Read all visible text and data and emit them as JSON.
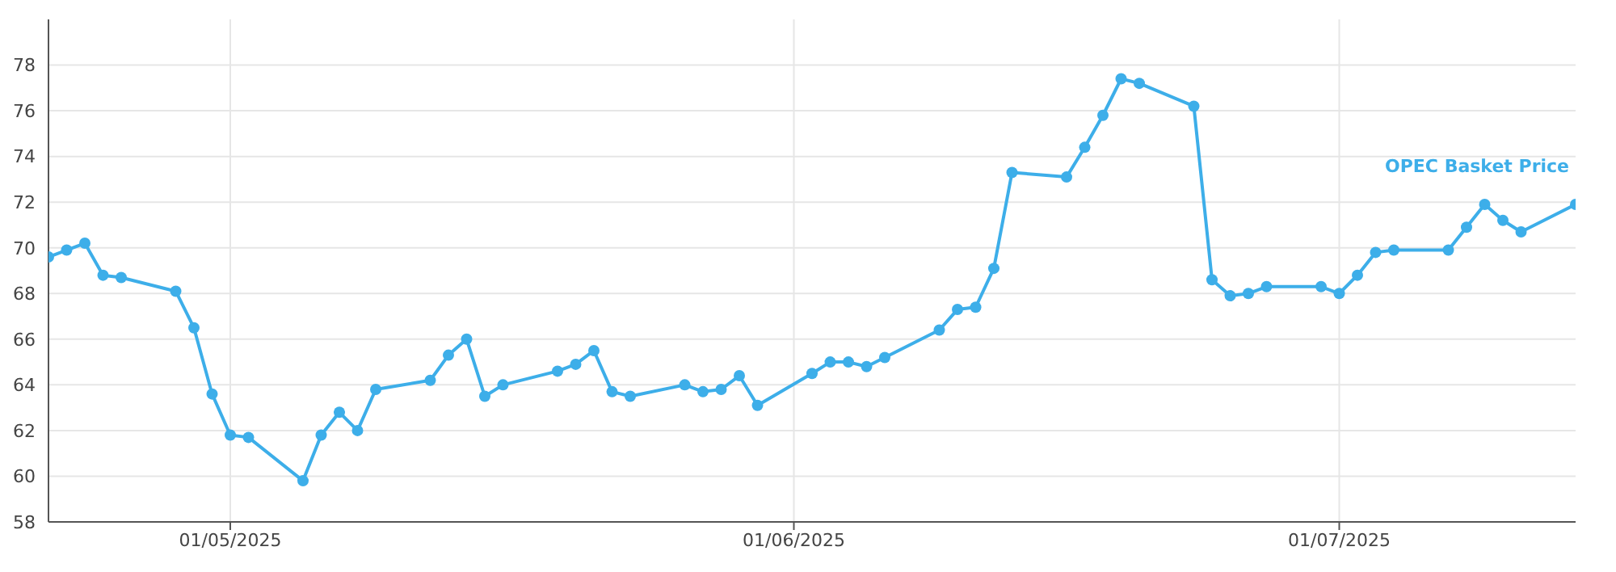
{
  "chart_data": {
    "type": "line",
    "x": [
      "2025-04-21",
      "2025-04-22",
      "2025-04-23",
      "2025-04-24",
      "2025-04-25",
      "2025-04-28",
      "2025-04-29",
      "2025-04-30",
      "2025-05-01",
      "2025-05-02",
      "2025-05-05",
      "2025-05-06",
      "2025-05-07",
      "2025-05-08",
      "2025-05-09",
      "2025-05-12",
      "2025-05-13",
      "2025-05-14",
      "2025-05-15",
      "2025-05-16",
      "2025-05-19",
      "2025-05-20",
      "2025-05-21",
      "2025-05-22",
      "2025-05-23",
      "2025-05-26",
      "2025-05-27",
      "2025-05-28",
      "2025-05-29",
      "2025-05-30",
      "2025-06-02",
      "2025-06-03",
      "2025-06-04",
      "2025-06-05",
      "2025-06-06",
      "2025-06-09",
      "2025-06-10",
      "2025-06-11",
      "2025-06-12",
      "2025-06-13",
      "2025-06-16",
      "2025-06-17",
      "2025-06-18",
      "2025-06-19",
      "2025-06-20",
      "2025-06-23",
      "2025-06-24",
      "2025-06-25",
      "2025-06-26",
      "2025-06-27",
      "2025-06-30",
      "2025-07-01",
      "2025-07-02",
      "2025-07-03",
      "2025-07-04",
      "2025-07-07",
      "2025-07-08",
      "2025-07-09",
      "2025-07-10",
      "2025-07-11",
      "2025-07-14"
    ],
    "series": [
      {
        "name": "OPEC Basket Price",
        "color": "#3daee9",
        "values": [
          69.6,
          69.9,
          70.2,
          68.8,
          68.7,
          68.1,
          66.5,
          63.6,
          61.8,
          61.7,
          59.8,
          61.8,
          62.8,
          62.0,
          63.8,
          64.2,
          65.3,
          66.0,
          63.5,
          64.0,
          64.6,
          64.9,
          65.5,
          63.7,
          63.5,
          64.0,
          63.7,
          63.8,
          64.4,
          63.1,
          64.5,
          65.0,
          65.0,
          64.8,
          65.2,
          66.4,
          67.3,
          67.4,
          69.1,
          73.3,
          73.1,
          74.4,
          75.8,
          77.4,
          77.2,
          76.2,
          68.6,
          67.9,
          68.0,
          68.3,
          68.3,
          68.0,
          68.8,
          69.8,
          69.9,
          69.9,
          70.9,
          71.9,
          71.2,
          70.7,
          71.9
        ]
      }
    ],
    "xlim": [
      "2025-04-21",
      "2025-07-14"
    ],
    "xticks": [
      {
        "value": "2025-05-01",
        "label": "01/05/2025"
      },
      {
        "value": "2025-06-01",
        "label": "01/06/2025"
      },
      {
        "value": "2025-07-01",
        "label": "01/07/2025"
      }
    ],
    "ylim": [
      58,
      80
    ],
    "yticks": [
      58,
      60,
      62,
      64,
      66,
      68,
      70,
      72,
      74,
      76,
      78
    ],
    "grid": true,
    "marker": "circle",
    "line_style": "solid"
  }
}
